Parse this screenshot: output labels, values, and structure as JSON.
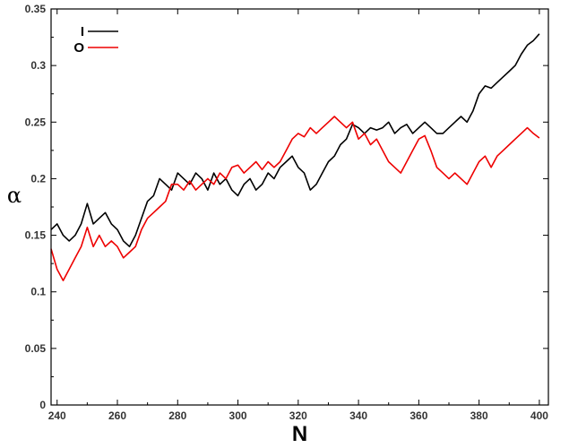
{
  "chart_data": {
    "type": "line",
    "title": "",
    "xlabel": "N",
    "ylabel": "α",
    "xlim": [
      238,
      403
    ],
    "ylim": [
      0,
      0.35
    ],
    "xticks": [
      "240",
      "260",
      "280",
      "300",
      "320",
      "340",
      "360",
      "380",
      "400"
    ],
    "yticks": [
      "0",
      "0.05",
      "0.1",
      "0.15",
      "0.2",
      "0.25",
      "0.3",
      "0.35"
    ],
    "grid": false,
    "legend_position": "top-left",
    "series": [
      {
        "name": "I",
        "color": "#000000",
        "x": [
          238,
          240,
          242,
          244,
          246,
          248,
          250,
          252,
          254,
          256,
          258,
          260,
          262,
          264,
          266,
          268,
          270,
          272,
          274,
          276,
          278,
          280,
          282,
          284,
          286,
          288,
          290,
          292,
          294,
          296,
          298,
          300,
          302,
          304,
          306,
          308,
          310,
          312,
          314,
          316,
          318,
          320,
          322,
          324,
          326,
          328,
          330,
          332,
          334,
          336,
          338,
          340,
          342,
          344,
          346,
          348,
          350,
          352,
          354,
          356,
          358,
          360,
          362,
          364,
          366,
          368,
          370,
          372,
          374,
          376,
          378,
          380,
          382,
          384,
          386,
          388,
          390,
          392,
          394,
          396,
          398,
          400
        ],
        "values": [
          0.155,
          0.16,
          0.15,
          0.145,
          0.15,
          0.16,
          0.178,
          0.16,
          0.165,
          0.17,
          0.16,
          0.155,
          0.145,
          0.14,
          0.15,
          0.165,
          0.18,
          0.185,
          0.2,
          0.195,
          0.19,
          0.205,
          0.2,
          0.195,
          0.205,
          0.2,
          0.19,
          0.205,
          0.195,
          0.2,
          0.19,
          0.185,
          0.195,
          0.2,
          0.19,
          0.195,
          0.205,
          0.2,
          0.21,
          0.215,
          0.22,
          0.21,
          0.205,
          0.19,
          0.195,
          0.205,
          0.215,
          0.22,
          0.23,
          0.235,
          0.248,
          0.245,
          0.24,
          0.245,
          0.243,
          0.245,
          0.25,
          0.24,
          0.245,
          0.248,
          0.24,
          0.245,
          0.25,
          0.245,
          0.24,
          0.24,
          0.245,
          0.25,
          0.255,
          0.25,
          0.26,
          0.275,
          0.282,
          0.28,
          0.285,
          0.29,
          0.295,
          0.3,
          0.31,
          0.318,
          0.322,
          0.328
        ]
      },
      {
        "name": "O",
        "color": "#ee0000",
        "x": [
          238,
          240,
          242,
          244,
          246,
          248,
          250,
          252,
          254,
          256,
          258,
          260,
          262,
          264,
          266,
          268,
          270,
          272,
          274,
          276,
          278,
          280,
          282,
          284,
          286,
          288,
          290,
          292,
          294,
          296,
          298,
          300,
          302,
          304,
          306,
          308,
          310,
          312,
          314,
          316,
          318,
          320,
          322,
          324,
          326,
          328,
          330,
          332,
          334,
          336,
          338,
          340,
          342,
          344,
          346,
          348,
          350,
          352,
          354,
          356,
          358,
          360,
          362,
          364,
          366,
          368,
          370,
          372,
          374,
          376,
          378,
          380,
          382,
          384,
          386,
          388,
          390,
          392,
          394,
          396,
          398,
          400
        ],
        "values": [
          0.138,
          0.12,
          0.11,
          0.12,
          0.13,
          0.14,
          0.157,
          0.14,
          0.15,
          0.14,
          0.145,
          0.14,
          0.13,
          0.135,
          0.14,
          0.155,
          0.165,
          0.17,
          0.175,
          0.18,
          0.195,
          0.195,
          0.19,
          0.198,
          0.19,
          0.195,
          0.2,
          0.195,
          0.205,
          0.2,
          0.21,
          0.212,
          0.205,
          0.21,
          0.215,
          0.208,
          0.215,
          0.21,
          0.215,
          0.225,
          0.235,
          0.24,
          0.237,
          0.245,
          0.24,
          0.245,
          0.25,
          0.255,
          0.25,
          0.245,
          0.25,
          0.235,
          0.24,
          0.23,
          0.235,
          0.225,
          0.215,
          0.21,
          0.205,
          0.215,
          0.225,
          0.235,
          0.238,
          0.225,
          0.21,
          0.205,
          0.2,
          0.205,
          0.2,
          0.195,
          0.205,
          0.215,
          0.22,
          0.21,
          0.22,
          0.225,
          0.23,
          0.235,
          0.24,
          0.245,
          0.24,
          0.236
        ]
      }
    ]
  }
}
